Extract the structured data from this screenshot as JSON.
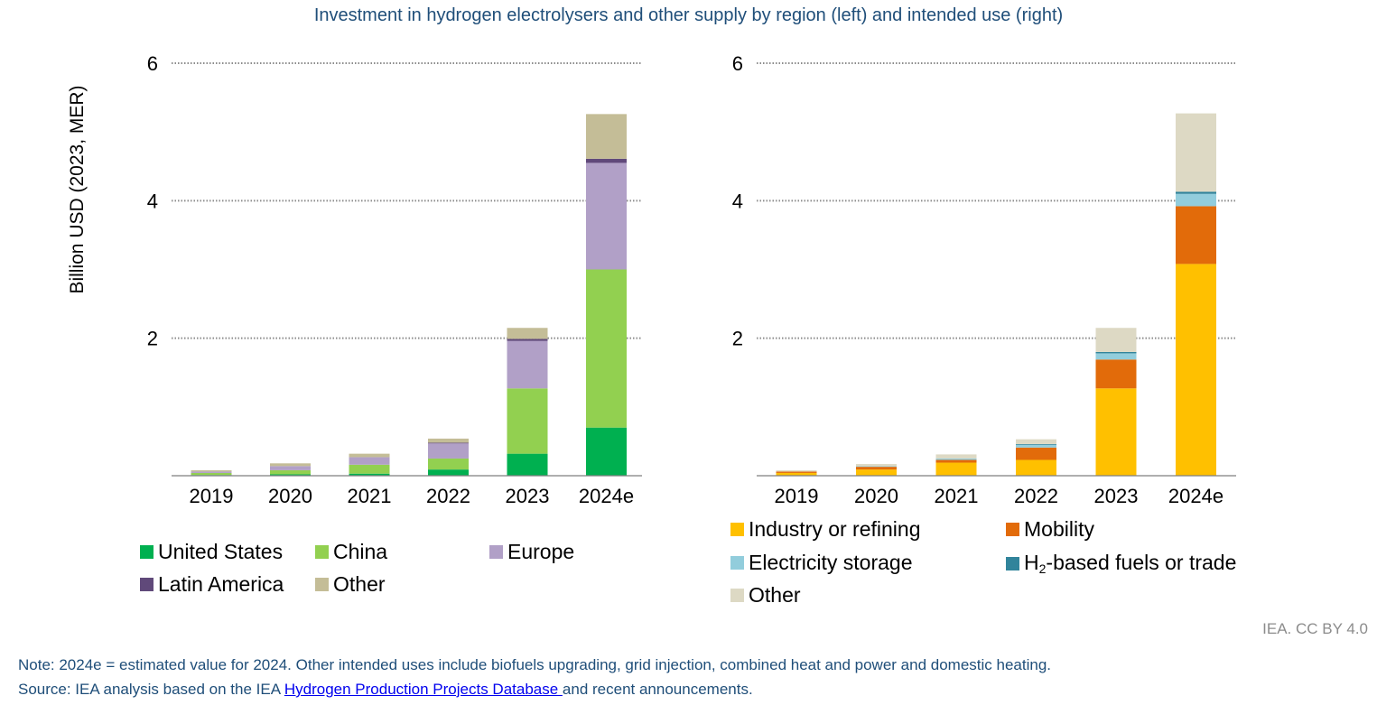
{
  "title": "Investment in hydrogen electrolysers and other supply by region (left) and intended use (right)",
  "ylabel": "Billion USD (2023, MER)",
  "credit": "IEA. CC BY 4.0",
  "note_line1": "Note: 2024e = estimated value for 2024. Other intended uses include biofuels upgrading, grid injection, combined heat and power and domestic heating.",
  "note_source_prefix": "Source: IEA analysis based on the IEA ",
  "note_source_link": "Hydrogen Production Projects Database ",
  "note_source_suffix": " and recent announcements.",
  "chart_data": [
    {
      "type": "bar",
      "stacked": true,
      "title": "by region",
      "categories": [
        "2019",
        "2020",
        "2021",
        "2022",
        "2023",
        "2024e"
      ],
      "ylim": [
        0,
        6
      ],
      "yticks": [
        2,
        4,
        6
      ],
      "ylabel": "Billion USD (2023, MER)",
      "legend": "bottom",
      "series": [
        {
          "name": "United States",
          "color": "#00b050",
          "values": [
            0.01,
            0.02,
            0.03,
            0.09,
            0.32,
            0.7
          ]
        },
        {
          "name": "China",
          "color": "#92d050",
          "values": [
            0.03,
            0.06,
            0.13,
            0.16,
            0.95,
            2.3
          ]
        },
        {
          "name": "Europe",
          "color": "#b1a0c7",
          "values": [
            0.02,
            0.06,
            0.11,
            0.22,
            0.69,
            1.55
          ]
        },
        {
          "name": "Latin America",
          "color": "#60497a",
          "values": [
            0.0,
            0.0,
            0.0,
            0.01,
            0.03,
            0.06
          ]
        },
        {
          "name": "Other",
          "color": "#c4bd97",
          "values": [
            0.02,
            0.04,
            0.05,
            0.06,
            0.16,
            0.65
          ]
        }
      ]
    },
    {
      "type": "bar",
      "stacked": true,
      "title": "by intended use",
      "categories": [
        "2019",
        "2020",
        "2021",
        "2022",
        "2023",
        "2024e"
      ],
      "ylim": [
        0,
        6
      ],
      "yticks": [
        2,
        4,
        6
      ],
      "legend": "bottom",
      "series": [
        {
          "name": "Industry or refining",
          "color": "#ffc000",
          "values": [
            0.04,
            0.09,
            0.19,
            0.23,
            1.27,
            3.08
          ]
        },
        {
          "name": "Mobility",
          "color": "#e26b0a",
          "values": [
            0.02,
            0.04,
            0.04,
            0.18,
            0.42,
            0.84
          ]
        },
        {
          "name": "Electricity storage",
          "color": "#92cddc",
          "values": [
            0.0,
            0.01,
            0.02,
            0.04,
            0.09,
            0.18
          ]
        },
        {
          "name": "H2-based fuels or trade",
          "name_main": "H",
          "name_sub": "2",
          "name_rest": "-based fuels or trade",
          "color": "#31849b",
          "values": [
            0.0,
            0.0,
            0.0,
            0.01,
            0.02,
            0.03
          ]
        },
        {
          "name": "Other",
          "color": "#ddd9c4",
          "values": [
            0.02,
            0.03,
            0.06,
            0.07,
            0.35,
            1.14
          ]
        }
      ]
    }
  ]
}
